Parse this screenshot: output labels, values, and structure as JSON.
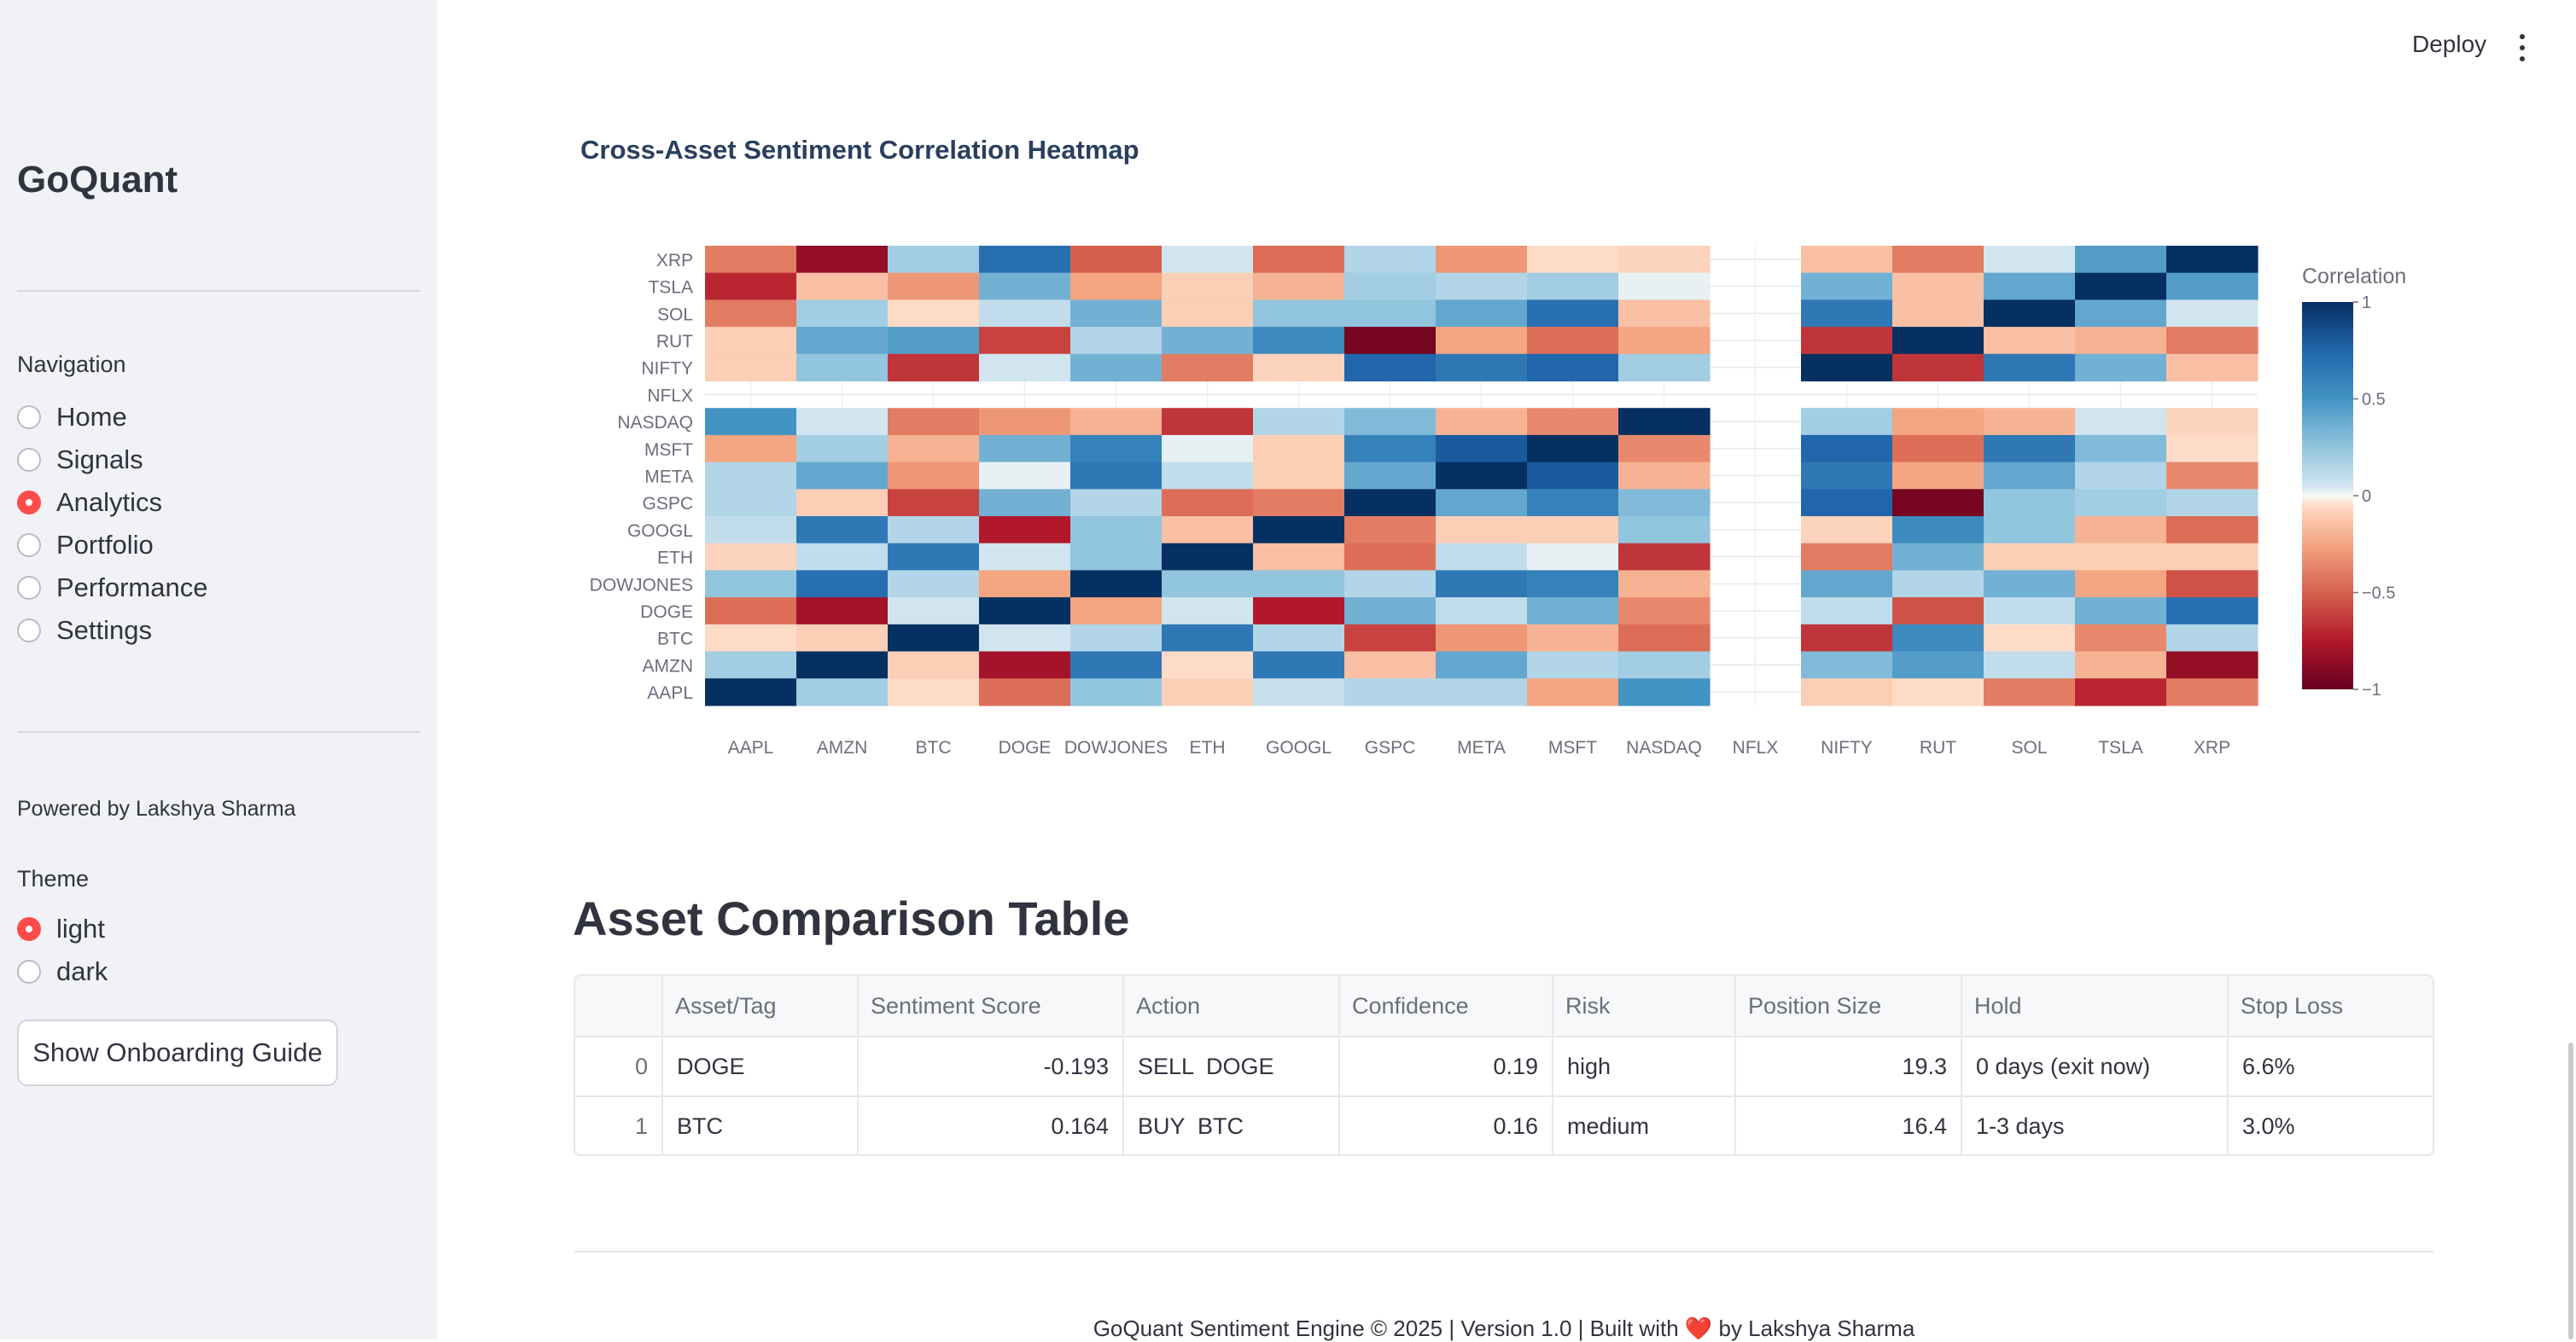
{
  "app": {
    "brand": "GoQuant",
    "deploy_label": "Deploy"
  },
  "sidebar": {
    "nav_label": "Navigation",
    "nav_items": [
      {
        "label": "Home",
        "selected": false
      },
      {
        "label": "Signals",
        "selected": false
      },
      {
        "label": "Analytics",
        "selected": true
      },
      {
        "label": "Portfolio",
        "selected": false
      },
      {
        "label": "Performance",
        "selected": false
      },
      {
        "label": "Settings",
        "selected": false
      }
    ],
    "powered_by": "Powered by Lakshya Sharma",
    "theme_label": "Theme",
    "theme_options": [
      {
        "label": "light",
        "selected": true
      },
      {
        "label": "dark",
        "selected": false
      }
    ],
    "onboarding_button": "Show Onboarding Guide"
  },
  "heatmap_section": {
    "title": "Cross-Asset Sentiment Correlation Heatmap"
  },
  "chart_data": {
    "type": "heatmap",
    "title": "Cross-Asset Sentiment Correlation Heatmap",
    "x_labels": [
      "AAPL",
      "AMZN",
      "BTC",
      "DOGE",
      "DOWJONES",
      "ETH",
      "GOOGL",
      "GSPC",
      "META",
      "MSFT",
      "NASDAQ",
      "NFLX",
      "NIFTY",
      "RUT",
      "SOL",
      "TSLA",
      "XRP"
    ],
    "y_labels": [
      "XRP",
      "TSLA",
      "SOL",
      "RUT",
      "NIFTY",
      "NFLX",
      "NASDAQ",
      "MSFT",
      "META",
      "GSPC",
      "GOOGL",
      "ETH",
      "DOWJONES",
      "DOGE",
      "BTC",
      "AMZN",
      "AAPL"
    ],
    "z": [
      [
        -0.4,
        -0.85,
        0.2,
        0.7,
        -0.5,
        0.05,
        -0.45,
        0.15,
        -0.3,
        -0.05,
        -0.08,
        null,
        -0.15,
        -0.4,
        0.05,
        0.45,
        1
      ],
      [
        -0.7,
        -0.15,
        -0.3,
        0.35,
        -0.25,
        -0.1,
        -0.2,
        0.2,
        0.15,
        0.2,
        0.02,
        null,
        0.35,
        -0.15,
        0.4,
        1,
        0.45
      ],
      [
        -0.4,
        0.2,
        -0.05,
        0.1,
        0.35,
        -0.1,
        0.25,
        0.25,
        0.4,
        0.7,
        -0.15,
        null,
        0.65,
        -0.15,
        1,
        0.4,
        0.05
      ],
      [
        -0.1,
        0.4,
        0.45,
        -0.6,
        0.15,
        0.35,
        0.55,
        -0.95,
        -0.25,
        -0.45,
        -0.25,
        null,
        -0.65,
        1,
        -0.15,
        -0.2,
        -0.4
      ],
      [
        -0.1,
        0.25,
        -0.65,
        0.05,
        0.35,
        -0.4,
        -0.08,
        0.75,
        0.65,
        0.75,
        0.2,
        null,
        1,
        -0.65,
        0.65,
        0.35,
        -0.15
      ],
      [
        null,
        null,
        null,
        null,
        null,
        null,
        null,
        null,
        null,
        null,
        null,
        null,
        null,
        null,
        null,
        null,
        null
      ],
      [
        0.5,
        0.05,
        -0.4,
        -0.3,
        -0.2,
        -0.65,
        0.15,
        0.3,
        -0.2,
        -0.35,
        1,
        null,
        0.2,
        -0.25,
        -0.2,
        0.05,
        -0.08
      ],
      [
        -0.25,
        0.2,
        -0.2,
        0.35,
        0.6,
        0.02,
        -0.1,
        0.6,
        0.8,
        1,
        -0.35,
        null,
        0.75,
        -0.45,
        0.65,
        0.3,
        -0.05
      ],
      [
        0.15,
        0.4,
        -0.3,
        0.02,
        0.65,
        0.1,
        -0.1,
        0.4,
        1,
        0.8,
        -0.2,
        null,
        0.65,
        -0.25,
        0.4,
        0.15,
        -0.35
      ],
      [
        0.15,
        -0.1,
        -0.6,
        0.35,
        0.15,
        -0.45,
        -0.4,
        1,
        0.4,
        0.6,
        0.3,
        null,
        0.75,
        -0.95,
        0.25,
        0.2,
        0.15
      ],
      [
        0.1,
        0.65,
        0.15,
        -0.75,
        0.25,
        -0.15,
        1,
        -0.4,
        -0.1,
        -0.1,
        0.25,
        null,
        -0.08,
        0.55,
        0.25,
        -0.2,
        -0.45
      ],
      [
        -0.08,
        0.1,
        0.65,
        0.05,
        0.25,
        1,
        -0.15,
        -0.45,
        0.1,
        0.02,
        -0.65,
        null,
        -0.4,
        0.35,
        -0.1,
        -0.1,
        -0.1
      ],
      [
        0.25,
        0.7,
        0.15,
        -0.25,
        1,
        0.25,
        0.25,
        0.15,
        0.65,
        0.6,
        -0.2,
        null,
        0.4,
        0.15,
        0.35,
        -0.25,
        -0.55
      ],
      [
        -0.45,
        -0.8,
        0.05,
        1,
        -0.25,
        0.05,
        -0.75,
        0.35,
        0.1,
        0.35,
        -0.35,
        null,
        0.1,
        -0.55,
        0.1,
        0.35,
        0.7
      ],
      [
        -0.05,
        -0.1,
        1,
        0.05,
        0.15,
        0.65,
        0.15,
        -0.6,
        -0.3,
        -0.2,
        -0.45,
        null,
        -0.65,
        0.55,
        -0.05,
        -0.35,
        0.15
      ],
      [
        0.2,
        1,
        -0.1,
        -0.8,
        0.65,
        -0.05,
        0.65,
        -0.15,
        0.4,
        0.15,
        0.2,
        null,
        0.3,
        0.45,
        0.1,
        -0.2,
        -0.85
      ],
      [
        1,
        0.2,
        -0.05,
        -0.45,
        0.25,
        -0.1,
        0.08,
        0.15,
        0.15,
        -0.25,
        0.5,
        null,
        -0.1,
        -0.05,
        -0.4,
        -0.7,
        -0.4
      ]
    ],
    "colorscale": "RdBu",
    "zmin": -1,
    "zmax": 1,
    "colorbar_title": "Correlation",
    "colorbar_ticks": [
      "1",
      "0.5",
      "0",
      "−0.5",
      "−1"
    ],
    "colorbar_tick_values": [
      1,
      0.5,
      0,
      -0.5,
      -1
    ]
  },
  "comparison": {
    "title": "Asset Comparison Table",
    "columns": [
      "",
      "Asset/Tag",
      "Sentiment Score",
      "Action",
      "Confidence",
      "Risk",
      "Position Size",
      "Hold",
      "Stop Loss"
    ],
    "rows": [
      [
        "0",
        "DOGE",
        "-0.193",
        "SELL  DOGE",
        "0.19",
        "high",
        "19.3",
        "0 days (exit now)",
        "6.6%"
      ],
      [
        "1",
        "BTC",
        "0.164",
        "BUY  BTC",
        "0.16",
        "medium",
        "16.4",
        "1-3 days",
        "3.0%"
      ]
    ]
  },
  "footer": {
    "text_before": "GoQuant Sentiment Engine © 2025 | Version 1.0 | Built with",
    "heart": "❤️",
    "text_after": "by Lakshya Sharma"
  }
}
